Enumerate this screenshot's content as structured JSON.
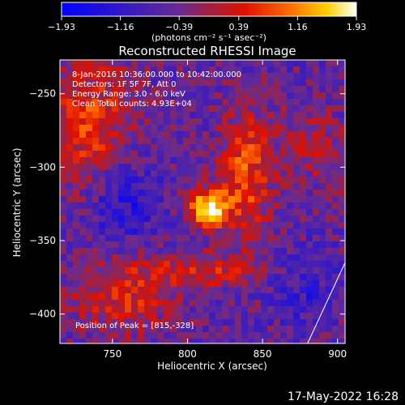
{
  "chart_data": {
    "type": "heatmap",
    "title": "Reconstructed RHESSI Image",
    "xlabel": "Heliocentric X (arcsec)",
    "ylabel": "Heliocentric Y (arcsec)",
    "xlim": [
      715,
      905
    ],
    "ylim": [
      -420,
      -227
    ],
    "x_ticks": [
      750,
      800,
      850,
      900
    ],
    "x_tick_labels": [
      "750",
      "800",
      "850",
      "900"
    ],
    "y_ticks": [
      -250,
      -300,
      -350,
      -400
    ],
    "y_tick_labels": [
      "−250",
      "−300",
      "−350",
      "−400"
    ],
    "colorbar": {
      "range": [
        -1.93,
        1.93
      ],
      "ticks": [
        -1.93,
        -1.16,
        -0.39,
        0.39,
        1.16,
        1.93
      ],
      "tick_labels": [
        "−1.93",
        "−1.16",
        "−0.39",
        "0.39",
        "1.16",
        "1.93"
      ],
      "unit_label": "(photons cm⁻² s⁻¹ asec⁻²)"
    },
    "annotations": [
      "8-Jan-2016 10:36:00.000 to 10:42:00.000",
      "Detectors: 1F 5F 7F, Att 0",
      "Energy Range: 3.0 - 6.0 keV",
      "Clean     Total counts: 4.93E+04"
    ],
    "peak_label": "Position of Peak = [815,-328]",
    "peak": [
      815,
      -328
    ],
    "limb_line": [
      [
        880,
        -420
      ],
      [
        905,
        -365
      ]
    ]
  },
  "footer": {
    "date": "17-May-2022 16:28"
  },
  "colors": {
    "background": "#000000",
    "text": "#ffffff"
  }
}
